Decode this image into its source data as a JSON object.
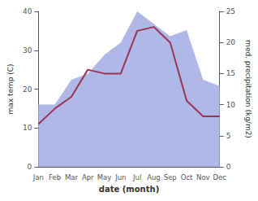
{
  "chart_data": {
    "type": "line",
    "categories": [
      "Jan",
      "Feb",
      "Mar",
      "Apr",
      "May",
      "Jun",
      "Jul",
      "Aug",
      "Sep",
      "Oct",
      "Nov",
      "Dec"
    ],
    "series": [
      {
        "type": "area",
        "color": "#b0b8e8",
        "axis": "y2",
        "values": [
          10,
          10,
          14,
          15,
          18,
          20,
          25,
          23,
          21,
          22,
          14,
          13
        ]
      },
      {
        "type": "line",
        "color": "#993355",
        "values": [
          11,
          15,
          18,
          25,
          24,
          24,
          35,
          36,
          32,
          17,
          13,
          13
        ]
      }
    ],
    "xlabel": "date (month)",
    "ylabel": "max temp (C)",
    "y2label": "med. precipitation (kg/m2)",
    "ylim": [
      0,
      40
    ],
    "yticks": [
      0,
      10,
      20,
      30,
      40
    ],
    "y2lim": [
      0,
      25
    ],
    "y2ticks": [
      0,
      5,
      10,
      15,
      20,
      25
    ],
    "grid": false
  }
}
